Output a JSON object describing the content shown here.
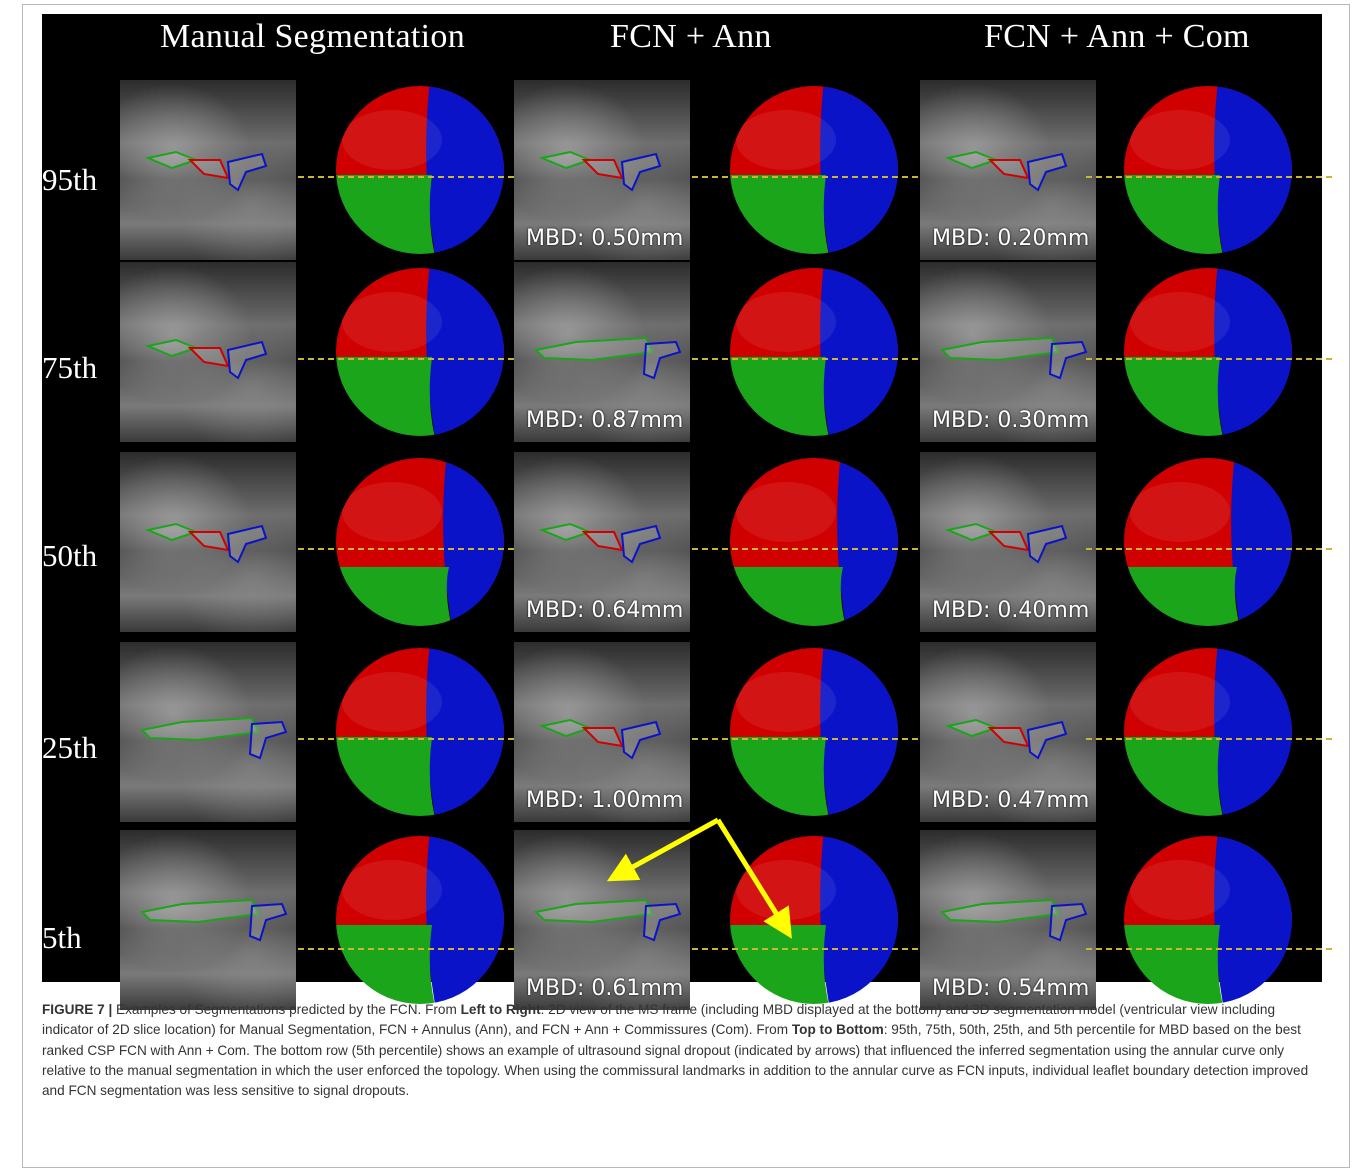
{
  "figure": {
    "columns": [
      "Manual Segmentation",
      "FCN + Ann",
      "FCN + Ann + Com"
    ],
    "rows": [
      "95th",
      "75th",
      "50th",
      "25th",
      "5th"
    ],
    "mbd": {
      "ann": [
        "MBD: 0.50mm",
        "MBD: 0.87mm",
        "MBD: 0.64mm",
        "MBD: 1.00mm",
        "MBD: 0.61mm"
      ],
      "com": [
        "MBD: 0.20mm",
        "MBD: 0.30mm",
        "MBD: 0.40mm",
        "MBD: 0.47mm",
        "MBD: 0.54mm"
      ]
    },
    "colors": {
      "anterior": "#d00000",
      "posterior": "#1aa51a",
      "septal": "#0a13c8",
      "slice_line": "#c9b635",
      "arrow": "#ffff00"
    }
  },
  "caption": {
    "label": "FIGURE 7 |",
    "s1": " Examples of Segmentations predicted by the FCN. From ",
    "b1": "Left to Right",
    "s2": ": 2D view of the MS frame (including MBD displayed at the bottom) and 3D segmentation model (ventricular view including indicator of 2D slice location) for Manual Segmentation, FCN + Annulus (Ann), and FCN + Ann + Commissures (Com). From ",
    "b2": "Top to Bottom",
    "s3": ": 95th, 75th, 50th, 25th, and 5th percentile for MBD based on the best ranked CSP FCN with Ann + Com. The bottom row (5th percentile) shows an example of ultrasound signal dropout (indicated by arrows) that influenced the inferred segmentation using the annular curve only relative to the manual segmentation in which the user enforced the topology. When using the commissural landmarks in addition to the annular curve as FCN inputs, individual leaflet boundary detection improved and FCN segmentation was less sensitive to signal dropouts."
  }
}
